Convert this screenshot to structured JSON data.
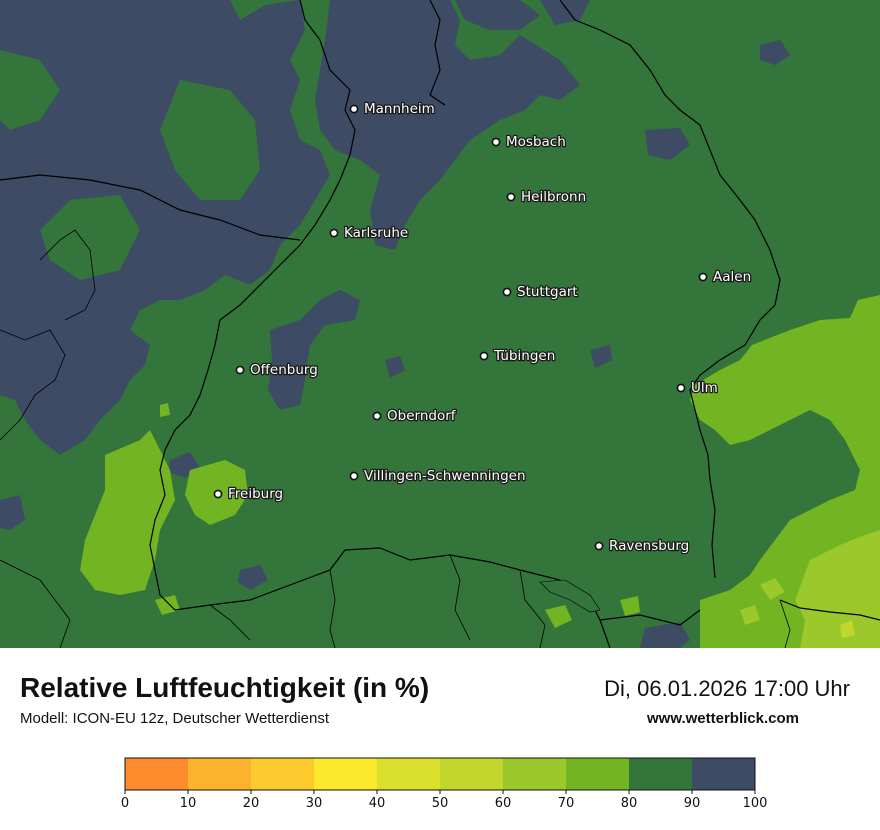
{
  "title": "Relative Luftfeuchtigkeit (in %)",
  "model": "Modell: ICON-EU 12z, Deutscher Wetterdienst",
  "datetime": "Di, 06.01.2026 17:00 Uhr",
  "website": "www.wetterblick.com",
  "cities": [
    {
      "name": "Mannheim",
      "label_position": "right"
    },
    {
      "name": "Mosbach",
      "label_position": "right"
    },
    {
      "name": "Heilbronn",
      "label_position": "right"
    },
    {
      "name": "Karlsruhe",
      "label_position": "right"
    },
    {
      "name": "Aalen",
      "label_position": "right"
    },
    {
      "name": "Stuttgart",
      "label_position": "right"
    },
    {
      "name": "Tübingen",
      "label_position": "right"
    },
    {
      "name": "Offenburg",
      "label_position": "right"
    },
    {
      "name": "Ulm",
      "label_position": "right"
    },
    {
      "name": "Oberndorf",
      "label_position": "right"
    },
    {
      "name": "Villingen-Schwenningen",
      "label_position": "right"
    },
    {
      "name": "Freiburg",
      "label_position": "right"
    },
    {
      "name": "Ravensburg",
      "label_position": "right"
    }
  ],
  "colorbar": {
    "ticks": [
      "0",
      "10",
      "20",
      "30",
      "40",
      "50",
      "60",
      "70",
      "80",
      "90",
      "100"
    ],
    "colors": [
      "#fc8c2c",
      "#fbb22c",
      "#fcca2c",
      "#fde92c",
      "#dbe02c",
      "#c2d72c",
      "#9bc82a",
      "#72b421",
      "#33753b",
      "#3d4b64"
    ]
  },
  "map_colors": {
    "band_60_70": "#9bc82a",
    "band_70_80": "#72b421",
    "band_80_90": "#33753b",
    "band_90_100": "#3d4b64"
  }
}
